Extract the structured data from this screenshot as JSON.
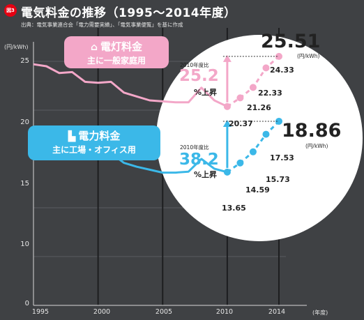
{
  "badge": "図3",
  "title": "電気料金の推移（1995〜2014年度）",
  "source": "出典：電気事業連合会「電力需要実績」、「電気事業便覧」を基に作成",
  "y_unit": "(円/kWh)",
  "x_unit": "(年度)",
  "colors": {
    "residential": "#f3a7c8",
    "industrial": "#3bb8e8",
    "background": "#3f4144",
    "circle": "#ffffff"
  },
  "residential": {
    "icon": "house-icon",
    "label": "電灯料金",
    "sublabel": "主に一般家庭用",
    "compare_label": "2010年度比",
    "increase_pct": "25.2",
    "increase_suffix": "%上昇",
    "final_value": "25.51",
    "final_unit": "(円/kWh)",
    "labels": [
      "20.37",
      "21.26",
      "22.33",
      "24.33"
    ]
  },
  "industrial": {
    "icon": "factory-icon",
    "label": "電力料金",
    "sublabel": "主に工場・オフィス用",
    "compare_label": "2010年度比",
    "increase_pct": "38.2",
    "increase_suffix": "%上昇",
    "final_value": "18.86",
    "final_unit": "(円/kWh)",
    "labels": [
      "13.65",
      "14.59",
      "15.73",
      "17.53"
    ]
  },
  "chart_data": {
    "type": "line",
    "title": "電気料金の推移（1995〜2014年度）",
    "xlabel": "(年度)",
    "ylabel": "(円/kWh)",
    "xlim": [
      1995,
      2014
    ],
    "ylim": [
      0,
      25
    ],
    "x_ticks": [
      "1995",
      "2000",
      "2005",
      "2010",
      "2014"
    ],
    "y_ticks": [
      "0",
      "5",
      "10",
      "15",
      "20",
      "25"
    ],
    "grid": true,
    "series": [
      {
        "name": "電灯料金",
        "x": [
          1995,
          1996,
          1997,
          1998,
          1999,
          2000,
          2001,
          2002,
          2003,
          2004,
          2005,
          2006,
          2007,
          2008,
          2009,
          2010,
          2011,
          2012,
          2013,
          2014
        ],
        "y": [
          24.7,
          24.5,
          23.8,
          23.9,
          22.9,
          22.8,
          22.9,
          21.8,
          21.4,
          21.0,
          20.9,
          20.8,
          20.8,
          22.3,
          21.0,
          20.37,
          21.26,
          22.33,
          24.33,
          25.51
        ]
      },
      {
        "name": "電力料金",
        "x": [
          1995,
          1996,
          1997,
          1998,
          1999,
          2000,
          2001,
          2002,
          2003,
          2004,
          2005,
          2006,
          2007,
          2008,
          2009,
          2010,
          2011,
          2012,
          2013,
          2014
        ],
        "y": [
          17.0,
          16.6,
          16.8,
          16.0,
          15.9,
          15.8,
          15.6,
          14.6,
          14.2,
          13.9,
          13.6,
          13.6,
          13.7,
          15.0,
          14.0,
          13.65,
          14.59,
          15.73,
          17.53,
          18.86
        ]
      }
    ]
  }
}
